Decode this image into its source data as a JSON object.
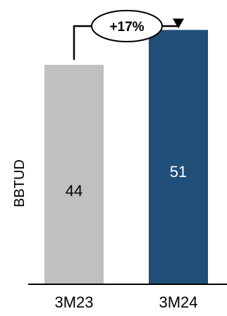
{
  "chart_data": {
    "type": "bar",
    "categories": [
      "3M23",
      "3M24"
    ],
    "values": [
      44,
      51
    ],
    "data_labels": [
      "44",
      "51"
    ],
    "xlabel": "",
    "ylabel": "BBTUD",
    "ylim": [
      0,
      57
    ],
    "grid": false,
    "colors": [
      "#c0c0c0",
      "#1f4e79"
    ],
    "label_colors": [
      "#000000",
      "#ffffff"
    ],
    "annotation": {
      "text": "+17%",
      "from": "3M23",
      "to": "3M24"
    }
  }
}
